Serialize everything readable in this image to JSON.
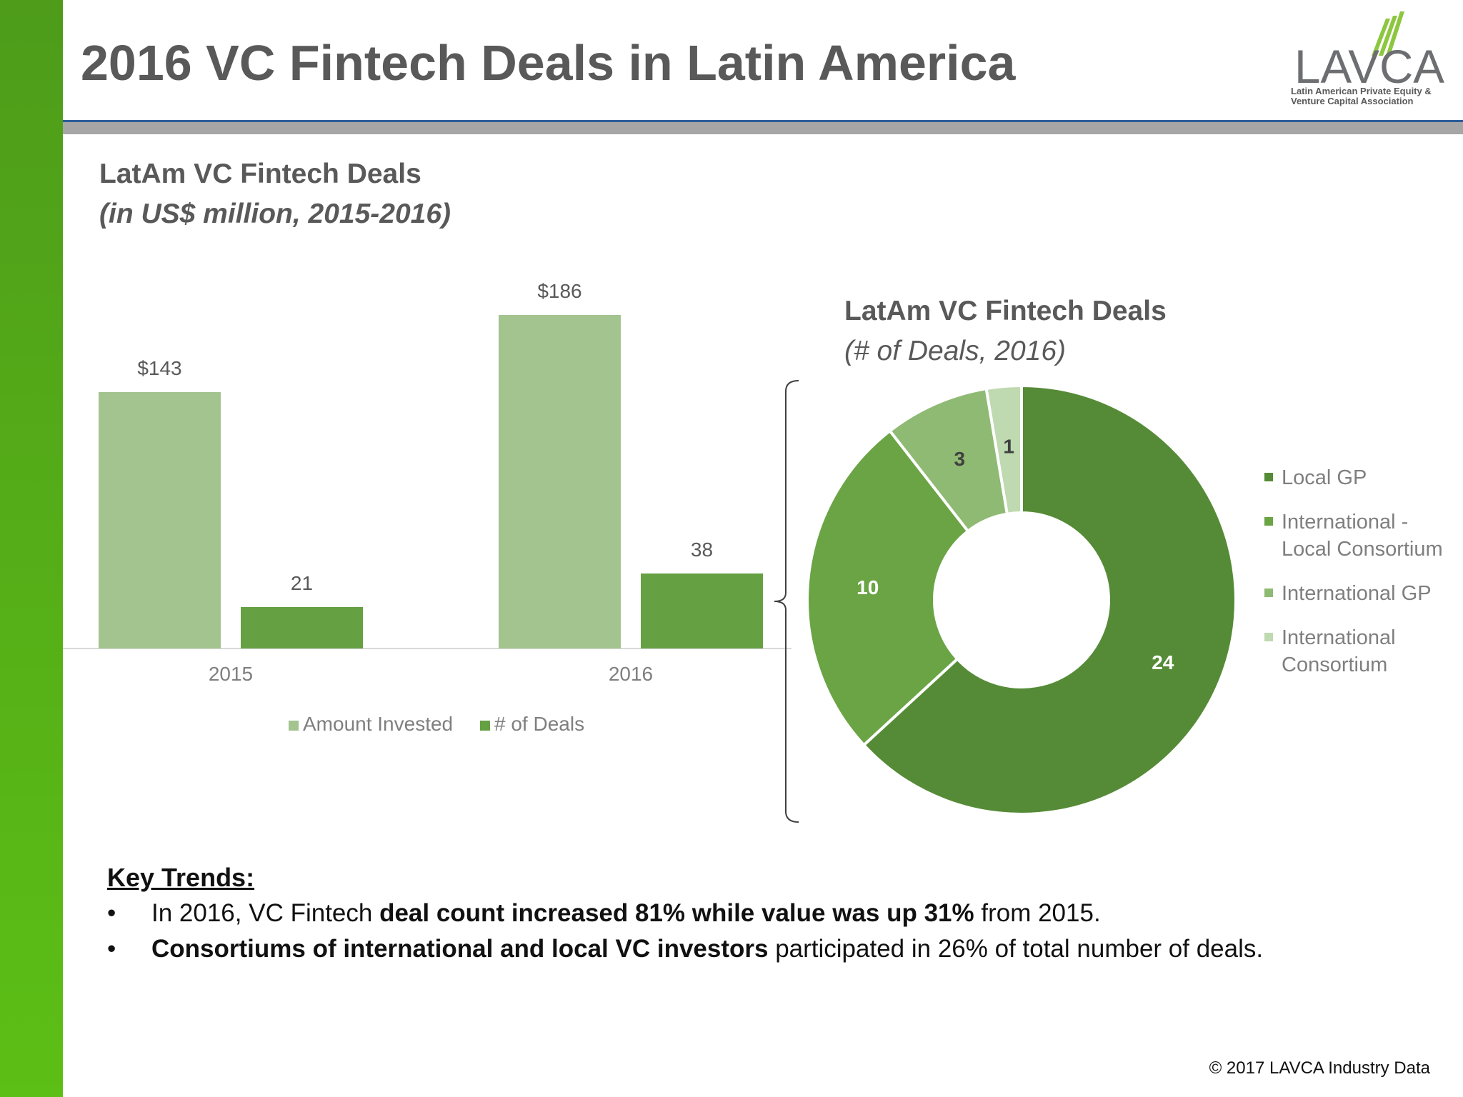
{
  "page": {
    "title": "2016 VC Fintech Deals in Latin America",
    "copyright": "© 2017 LAVCA Industry Data"
  },
  "logo": {
    "name": "LAVCA",
    "subtitle_line1": "Latin American Private Equity &",
    "subtitle_line2": "Venture Capital Association"
  },
  "chart_data": [
    {
      "type": "bar",
      "title": "LatAm VC Fintech Deals",
      "subtitle": "(in US$ million, 2015-2016)",
      "categories": [
        "2015",
        "2016"
      ],
      "series": [
        {
          "name": "Amount Invested",
          "values": [
            143,
            186
          ],
          "labels": [
            "$143",
            "$186"
          ],
          "color": "#a3c48f"
        },
        {
          "name": "# of Deals",
          "values": [
            21,
            38
          ],
          "labels": [
            "21",
            "38"
          ],
          "color": "#65a043"
        }
      ],
      "ylim": [
        0,
        200
      ],
      "grid": false,
      "legend": "bottom"
    },
    {
      "type": "pie",
      "donut": true,
      "title": "LatAm VC Fintech Deals",
      "subtitle": "(# of Deals, 2016)",
      "slices": [
        {
          "label": "Local GP",
          "value": 24,
          "color": "#558b36"
        },
        {
          "label": "International - Local Consortium",
          "value": 10,
          "color": "#6aa444"
        },
        {
          "label": "International GP",
          "value": 3,
          "color": "#8fba73"
        },
        {
          "label": "International Consortium",
          "value": 1,
          "color": "#bfd9b0"
        }
      ],
      "legend": "right",
      "legend_lines": [
        [
          "Local GP"
        ],
        [
          "International -",
          "Local Consortium"
        ],
        [
          "International GP"
        ],
        [
          "International",
          "Consortium"
        ]
      ]
    }
  ],
  "key_trends": {
    "heading": "Key Trends:",
    "b1_pre": "In 2016, VC Fintech ",
    "b1_bold": "deal count increased 81% while value was up 31%",
    "b1_post": " from 2015.",
    "b2_bold": "Consortiums of international and local VC investors",
    "b2_post": " participated in 26% of total number of deals."
  }
}
